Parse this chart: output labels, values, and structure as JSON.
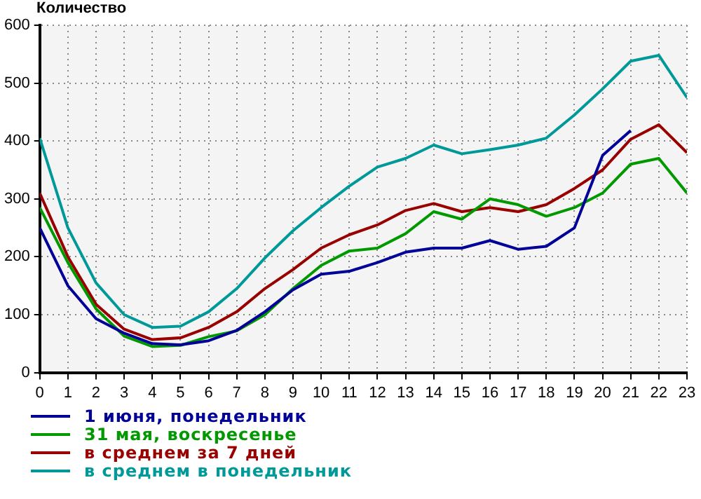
{
  "chart_data": {
    "type": "line",
    "ylabel": "Количество",
    "x": [
      0,
      1,
      2,
      3,
      4,
      5,
      6,
      7,
      8,
      9,
      10,
      11,
      12,
      13,
      14,
      15,
      16,
      17,
      18,
      19,
      20,
      21,
      22,
      23
    ],
    "series": [
      {
        "name": "1 июня, понедельник",
        "color": "#000099",
        "values": [
          250,
          150,
          93,
          68,
          50,
          48,
          55,
          73,
          105,
          143,
          170,
          175,
          190,
          208,
          215,
          215,
          228,
          213,
          218,
          250,
          375,
          418,
          null,
          null
        ]
      },
      {
        "name": "31 мая, воскресенье",
        "color": "#009900",
        "values": [
          285,
          190,
          110,
          63,
          45,
          47,
          62,
          72,
          100,
          145,
          185,
          210,
          215,
          240,
          278,
          265,
          300,
          290,
          270,
          285,
          310,
          360,
          370,
          310
        ]
      },
      {
        "name": "в среднем за 7 дней",
        "color": "#990000",
        "values": [
          310,
          200,
          118,
          75,
          57,
          60,
          78,
          105,
          145,
          178,
          215,
          238,
          255,
          280,
          292,
          278,
          285,
          278,
          290,
          318,
          350,
          403,
          428,
          380
        ]
      },
      {
        "name": "в среднем в понедельник",
        "color": "#009999",
        "values": [
          405,
          250,
          155,
          100,
          78,
          80,
          105,
          145,
          198,
          245,
          285,
          322,
          355,
          370,
          393,
          378,
          385,
          393,
          405,
          445,
          490,
          538,
          548,
          475
        ]
      }
    ],
    "xlim": [
      0,
      23
    ],
    "xticks": [
      0,
      1,
      2,
      3,
      4,
      5,
      6,
      7,
      8,
      9,
      10,
      11,
      12,
      13,
      14,
      15,
      16,
      17,
      18,
      19,
      20,
      21,
      22,
      23
    ],
    "ylim": [
      0,
      600
    ],
    "yticks": [
      0,
      100,
      200,
      300,
      400,
      500,
      600
    ],
    "grid": true,
    "legend": "bottom",
    "marker": "none",
    "line_style": "solid"
  }
}
